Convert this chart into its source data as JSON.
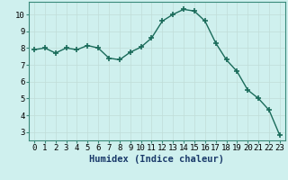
{
  "x": [
    0,
    1,
    2,
    3,
    4,
    5,
    6,
    7,
    8,
    9,
    10,
    11,
    12,
    13,
    14,
    15,
    16,
    17,
    18,
    19,
    20,
    21,
    22,
    23
  ],
  "y": [
    7.9,
    8.0,
    7.7,
    8.0,
    7.9,
    8.15,
    8.0,
    7.4,
    7.3,
    7.75,
    8.05,
    8.6,
    9.6,
    10.0,
    10.3,
    10.2,
    9.6,
    8.3,
    7.3,
    6.6,
    5.5,
    5.0,
    4.3,
    2.8
  ],
  "line_color": "#1a6b5a",
  "marker": "+",
  "markersize": 4,
  "linewidth": 1.0,
  "bg_color": "#cff0ee",
  "grid_color": "#c0ddd8",
  "xlabel": "Humidex (Indice chaleur)",
  "xlim": [
    -0.5,
    23.5
  ],
  "ylim": [
    2.5,
    10.75
  ],
  "yticks": [
    3,
    4,
    5,
    6,
    7,
    8,
    9,
    10
  ],
  "xticks": [
    0,
    1,
    2,
    3,
    4,
    5,
    6,
    7,
    8,
    9,
    10,
    11,
    12,
    13,
    14,
    15,
    16,
    17,
    18,
    19,
    20,
    21,
    22,
    23
  ],
  "xlabel_fontsize": 7.5,
  "tick_fontsize": 6.5,
  "ax_border_color": "#3a8a7a"
}
